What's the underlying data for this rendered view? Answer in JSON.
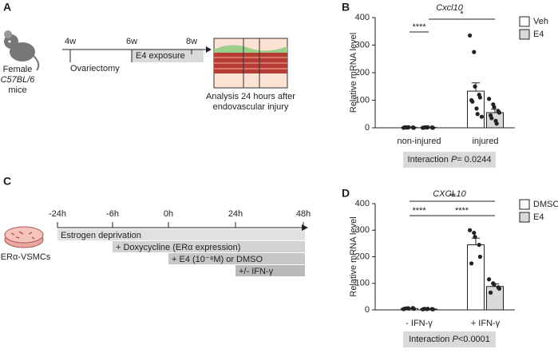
{
  "panel_a": {
    "label": "A",
    "mouse": [
      "Female",
      "C57BL/6",
      "mice"
    ],
    "weeks": [
      "4w",
      "6w",
      "8w"
    ],
    "ovariectomy": "Ovariectomy",
    "exposure": "E4 exposure",
    "analysis": [
      "Analysis 24 hours after",
      "endovascular injury"
    ]
  },
  "panel_c": {
    "label": "C",
    "cells": "ERα-VSMCs",
    "times": [
      "-24h",
      "-6h",
      "0h",
      "24h",
      "48h"
    ],
    "steps": [
      "Estrogen deprivation",
      "+ Doxycycline (ERα expression)",
      "+ E4 (10⁻⁸M) or DMSO",
      "+/- IFN-γ"
    ]
  },
  "chart_data": [
    {
      "type": "bar",
      "panel_label": "B",
      "title": "Cxcl10",
      "y_label": "Relative mRNA level",
      "categories": [
        "non-injured",
        "injured"
      ],
      "ylim": [
        0,
        400
      ],
      "yticks": [
        0,
        100,
        200,
        300,
        400
      ],
      "series": [
        {
          "name": "Veh",
          "color": "#ffffff",
          "values": [
            1,
            133
          ],
          "errors": [
            0.5,
            30
          ],
          "points": [
            [
              0,
              1,
              2,
              1,
              0,
              2,
              1
            ],
            [
              335,
              275,
              150,
              120,
              110,
              100,
              95,
              70,
              50,
              40
            ]
          ]
        },
        {
          "name": "E4",
          "color": "#d9d9d9",
          "values": [
            1,
            55
          ],
          "errors": [
            0.5,
            12
          ],
          "points": [
            [
              0,
              1,
              2,
              1,
              0,
              1,
              2
            ],
            [
              105,
              85,
              75,
              60,
              55,
              45,
              35,
              25,
              15
            ]
          ]
        }
      ],
      "significance": [
        "****",
        "*"
      ],
      "interaction": {
        "label": "Interaction",
        "p": "P",
        "value": "= 0.0244"
      }
    },
    {
      "type": "bar",
      "panel_label": "D",
      "title": "CXCL10",
      "y_label": "Relative mRNA level",
      "categories": [
        "- IFN-γ",
        "+ IFN-γ"
      ],
      "ylim": [
        0,
        400
      ],
      "yticks": [
        0,
        100,
        200,
        300,
        400
      ],
      "series": [
        {
          "name": "DMSO",
          "color": "#ffffff",
          "values": [
            5,
            245
          ],
          "errors": [
            1,
            25
          ],
          "points": [
            [
              3,
              6,
              5,
              7,
              4,
              5
            ],
            [
              300,
              290,
              275,
              245,
              200,
              175
            ]
          ]
        },
        {
          "name": "E4",
          "color": "#d9d9d9",
          "values": [
            3,
            88
          ],
          "errors": [
            1,
            10
          ],
          "points": [
            [
              2,
              3,
              4,
              3,
              2,
              4
            ],
            [
              115,
              100,
              95,
              85,
              80,
              65
            ]
          ]
        }
      ],
      "significance": [
        "**",
        "****",
        "****"
      ],
      "interaction": {
        "label": "Interaction",
        "p": "P",
        "value": "<0.0001"
      }
    }
  ]
}
